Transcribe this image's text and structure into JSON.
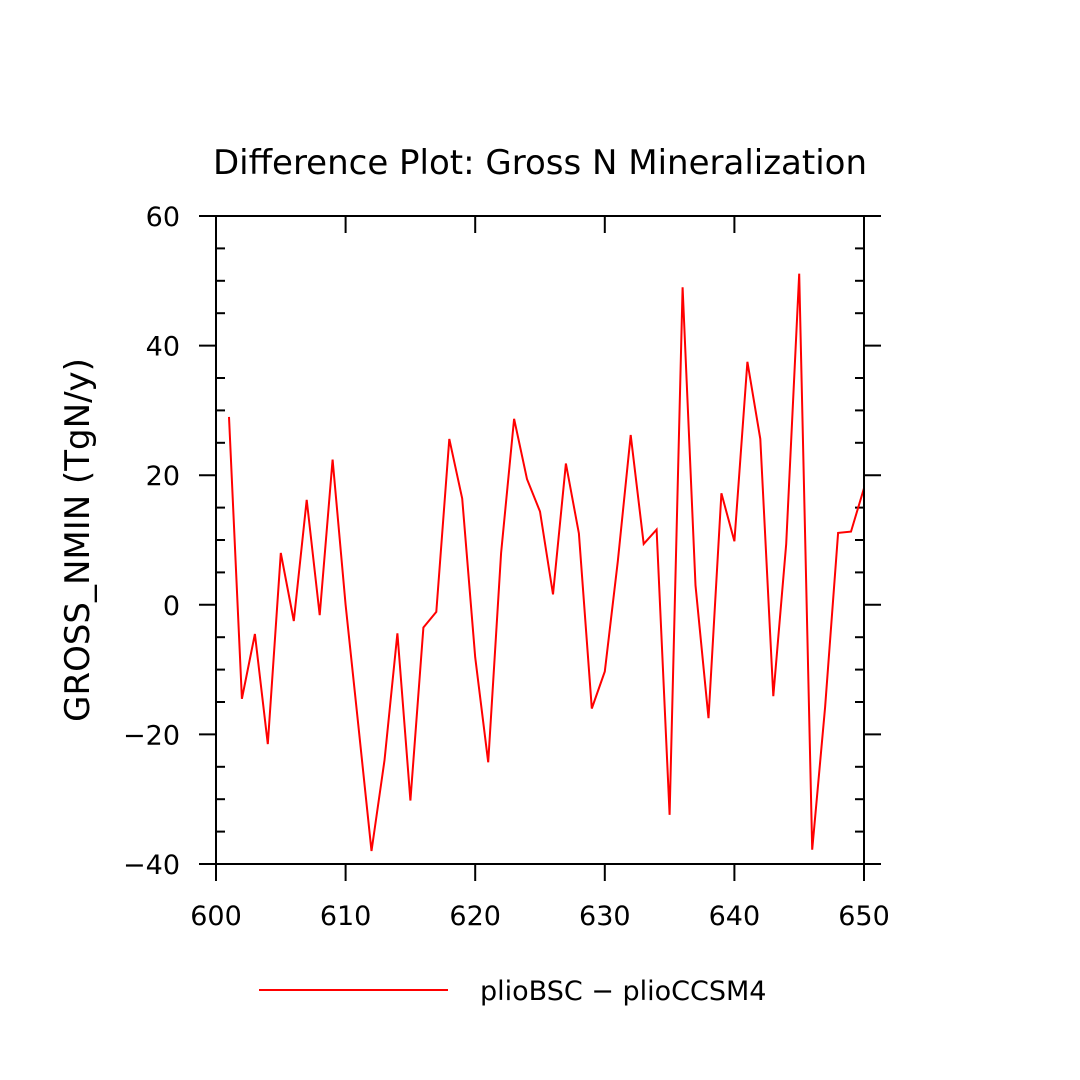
{
  "chart_data": {
    "type": "line",
    "title": "Difference Plot: Gross N Mineralization",
    "xlabel": "",
    "ylabel": "GROSS_NMIN   (TgN/y)",
    "xlim": [
      600,
      650
    ],
    "ylim": [
      -40,
      60
    ],
    "x_ticks": [
      600,
      610,
      620,
      630,
      640,
      650
    ],
    "x_tick_labels": [
      "600",
      "610",
      "620",
      "630",
      "640",
      "650"
    ],
    "y_ticks": [
      -40,
      -20,
      0,
      20,
      40,
      60
    ],
    "y_tick_labels": [
      "−40",
      "−20",
      "0",
      "20",
      "40",
      "60"
    ],
    "grid": false,
    "legend_position": "bottom",
    "series": [
      {
        "name": "plioBSC − plioCCSM4",
        "color": "#ff0000",
        "x": [
          601,
          602,
          603,
          604,
          605,
          606,
          607,
          608,
          609,
          610,
          611,
          612,
          613,
          614,
          615,
          616,
          617,
          618,
          619,
          620,
          621,
          622,
          623,
          624,
          625,
          626,
          627,
          628,
          629,
          630,
          631,
          632,
          633,
          634,
          635,
          636,
          637,
          638,
          639,
          640,
          641,
          642,
          643,
          644,
          645,
          646,
          647,
          648,
          649,
          650
        ],
        "y": [
          29.0,
          -14.5,
          -4.5,
          -21.5,
          8.0,
          -2.5,
          16.2,
          -1.6,
          22.4,
          0.0,
          -19.0,
          -38.0,
          -24.0,
          -4.4,
          -30.2,
          -3.5,
          -1.1,
          25.6,
          16.4,
          -8.1,
          -24.3,
          8.0,
          28.7,
          19.4,
          14.4,
          1.6,
          21.8,
          11.0,
          -16.0,
          -10.3,
          6.7,
          26.2,
          9.4,
          11.6,
          -32.4,
          49.0,
          3.0,
          -17.5,
          17.2,
          9.8,
          37.5,
          25.6,
          -14.1,
          9.4,
          51.1,
          -37.8,
          -15.8,
          11.1,
          11.3,
          18.0
        ]
      }
    ]
  }
}
